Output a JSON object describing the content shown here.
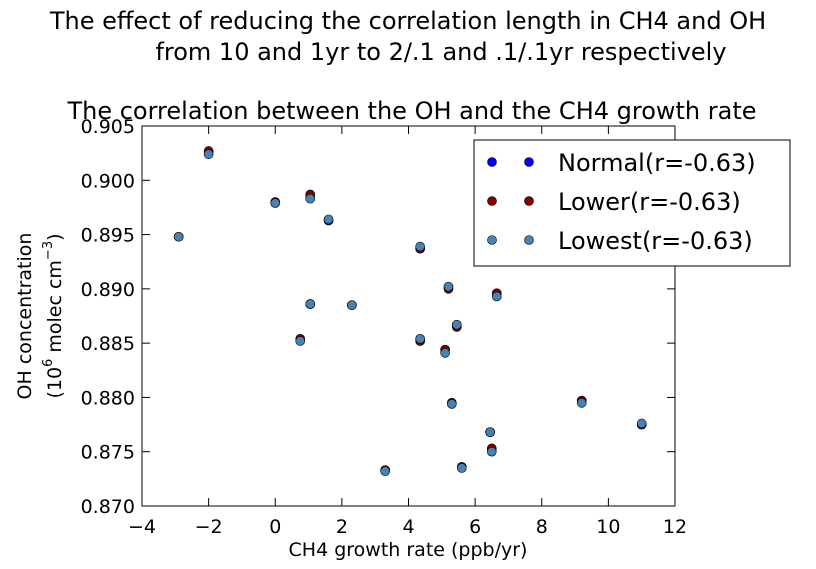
{
  "figure": {
    "title_line1": "The effect of reducing the correlation length in CH4 and OH",
    "title_line2": "from 10 and 1yr to 2/.1 and .1/.1yr respectively",
    "subtitle": "The correlation between the OH and the CH4 growth rate"
  },
  "chart_data": {
    "type": "scatter",
    "title": "The correlation between the OH and the CH4 growth rate",
    "xlabel": "CH4 growth rate (ppb/yr)",
    "ylabel_line1": "OH concentration",
    "ylabel_line2_prefix": "(10",
    "ylabel_line2_exp": "6",
    "ylabel_line2_mid": " molec cm",
    "ylabel_line2_exp2": "−3",
    "ylabel_line2_suffix": ")",
    "xlim": [
      -4,
      12
    ],
    "ylim": [
      0.87,
      0.905
    ],
    "xticks": [
      -4,
      -2,
      0,
      2,
      4,
      6,
      8,
      10,
      12
    ],
    "xtick_labels": [
      "−4",
      "−2",
      "0",
      "2",
      "4",
      "6",
      "8",
      "10",
      "12"
    ],
    "yticks": [
      0.87,
      0.875,
      0.88,
      0.885,
      0.89,
      0.895,
      0.9,
      0.905
    ],
    "ytick_labels": [
      "0.870",
      "0.875",
      "0.880",
      "0.885",
      "0.890",
      "0.895",
      "0.900",
      "0.905"
    ],
    "grid": false,
    "legend_position": "top-right",
    "series": [
      {
        "name": "Normal(r=-0.63)",
        "color": "#0000ff",
        "x": [
          -2.9,
          -2.0,
          0.0,
          1.05,
          1.05,
          1.6,
          0.75,
          2.3,
          3.3,
          4.35,
          4.35,
          5.1,
          5.2,
          5.3,
          5.45,
          5.6,
          6.45,
          6.5,
          6.65,
          9.2,
          11.0
        ],
        "y": [
          0.8948,
          0.9026,
          0.898,
          0.8986,
          0.8886,
          0.8963,
          0.8853,
          0.8885,
          0.8733,
          0.8937,
          0.8852,
          0.8844,
          0.8901,
          0.8795,
          0.8865,
          0.8736,
          0.8768,
          0.8753,
          0.8895,
          0.8797,
          0.8775
        ]
      },
      {
        "name": "Lower(r=-0.63)",
        "color": "#800000",
        "x": [
          -2.9,
          -2.0,
          0.0,
          1.05,
          1.05,
          1.6,
          0.75,
          2.3,
          3.3,
          4.35,
          4.35,
          5.1,
          5.2,
          5.3,
          5.45,
          5.6,
          6.45,
          6.5,
          6.65,
          9.2,
          11.0
        ],
        "y": [
          0.8948,
          0.9027,
          0.898,
          0.8987,
          0.8886,
          0.8963,
          0.8854,
          0.8885,
          0.8733,
          0.8937,
          0.8852,
          0.8844,
          0.89,
          0.8795,
          0.8865,
          0.8736,
          0.8768,
          0.8753,
          0.8896,
          0.8797,
          0.8775
        ]
      },
      {
        "name": "Lowest(r=-0.63)",
        "color": "#4682b4",
        "x": [
          -2.9,
          -2.0,
          0.0,
          1.05,
          1.05,
          1.6,
          0.75,
          2.3,
          3.3,
          4.35,
          4.35,
          5.1,
          5.2,
          5.3,
          5.45,
          5.6,
          6.45,
          6.5,
          6.65,
          9.2,
          11.0
        ],
        "y": [
          0.8948,
          0.9024,
          0.8979,
          0.8983,
          0.8886,
          0.8964,
          0.8852,
          0.8885,
          0.8732,
          0.8939,
          0.8854,
          0.8841,
          0.8902,
          0.8794,
          0.8867,
          0.8735,
          0.8768,
          0.875,
          0.8893,
          0.8795,
          0.8776
        ]
      }
    ]
  }
}
